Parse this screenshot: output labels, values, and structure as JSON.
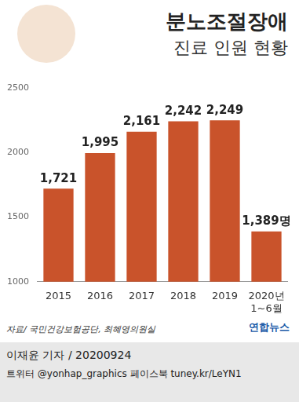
{
  "chart_data": {
    "type": "bar",
    "title": "분노조절장애",
    "subtitle": "진료 인원 현황",
    "categories": [
      "2015",
      "2016",
      "2017",
      "2018",
      "2019",
      "2020년 1~6월"
    ],
    "values": [
      1721,
      1995,
      2161,
      2242,
      2249,
      1389
    ],
    "value_labels": [
      "1,721",
      "1,995",
      "2,161",
      "2,242",
      "2,249",
      "1,389명"
    ],
    "color": "#c9532b",
    "ylim": [
      1000,
      2500
    ],
    "yticks": [
      1000,
      1500,
      2000,
      2500
    ],
    "grid": false,
    "data_labels": true
  },
  "footer": {
    "source": "자료/ 국민건강보험공단, 최혜영의원실",
    "logo": "연합뉴스",
    "reporter": "이재윤 기자 / 20200924",
    "social": "트위터 @yonhap_graphics  페이스북 tuney.kr/LeYN1"
  }
}
